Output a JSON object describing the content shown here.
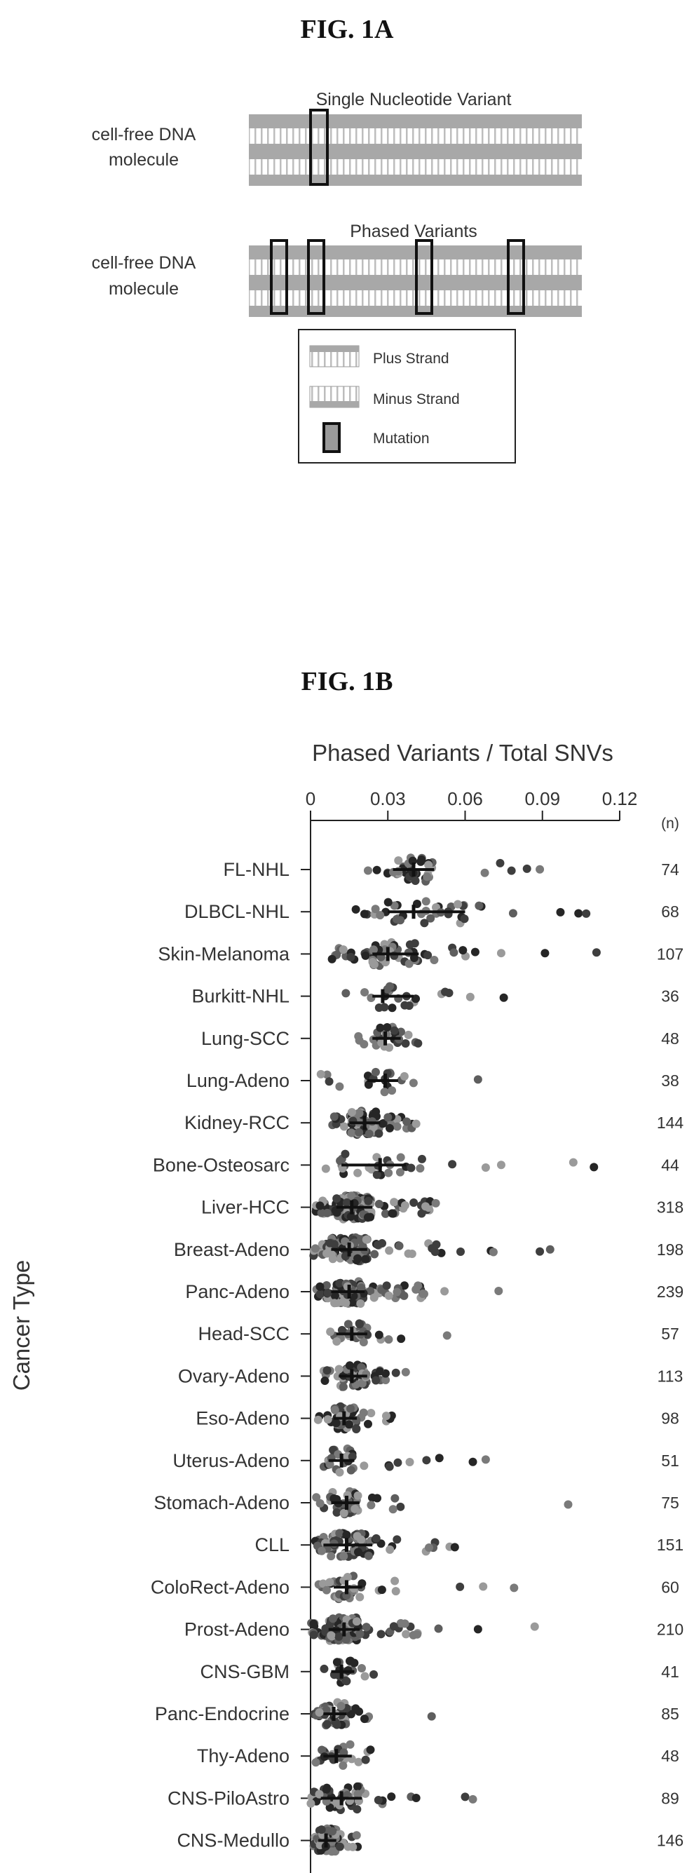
{
  "figure_a": {
    "title": "FIG. 1A",
    "panel1_caption": "Single Nucleotide Variant",
    "panel2_caption": "Phased Variants",
    "molecule_label_line1": "cell-free DNA",
    "molecule_label_line2": "molecule",
    "legend": {
      "plus": "Plus Strand",
      "minus": "Minus Strand",
      "mutation": "Mutation"
    }
  },
  "figure_b": {
    "title": "FIG. 1B"
  },
  "chart_data": {
    "type": "scatter",
    "title": "Phased Variants / Total SNVs",
    "xlabel": "Phased Variants / Total SNVs",
    "ylabel": "Cancer Type",
    "xlim": [
      0,
      0.12
    ],
    "xticks": [
      "0",
      "0.03",
      "0.06",
      "0.09",
      "0.12"
    ],
    "n_header": "(n)",
    "categories": [
      "FL-NHL",
      "DLBCL-NHL",
      "Skin-Melanoma",
      "Burkitt-NHL",
      "Lung-SCC",
      "Lung-Adeno",
      "Kidney-RCC",
      "Bone-Osteosarc",
      "Liver-HCC",
      "Breast-Adeno",
      "Panc-Adeno",
      "Head-SCC",
      "Ovary-Adeno",
      "Eso-Adeno",
      "Uterus-Adeno",
      "Stomach-Adeno",
      "CLL",
      "ColoRect-Adeno",
      "Prost-Adeno",
      "CNS-GBM",
      "Panc-Endocrine",
      "Thy-Adeno",
      "CNS-PiloAstro",
      "CNS-Medullo"
    ],
    "n": [
      "74",
      "68",
      "107",
      "36",
      "48",
      "38",
      "144",
      "44",
      "318",
      "198",
      "239",
      "57",
      "113",
      "98",
      "51",
      "75",
      "151",
      "60",
      "210",
      "41",
      "85",
      "48",
      "89",
      "146"
    ],
    "series": [
      {
        "median": 0.04,
        "q1": 0.032,
        "q3": 0.048,
        "min": 0.02,
        "max": 0.09,
        "outliers": [
          0.078,
          0.084,
          0.089
        ]
      },
      {
        "median": 0.04,
        "q1": 0.03,
        "q3": 0.06,
        "min": 0.013,
        "max": 0.08,
        "outliers": [
          0.097,
          0.104,
          0.107
        ]
      },
      {
        "median": 0.03,
        "q1": 0.024,
        "q3": 0.042,
        "min": 0.008,
        "max": 0.07,
        "outliers": [
          0.074,
          0.091,
          0.111
        ]
      },
      {
        "median": 0.028,
        "q1": 0.024,
        "q3": 0.04,
        "min": 0.013,
        "max": 0.055,
        "outliers": [
          0.062,
          0.075
        ]
      },
      {
        "median": 0.029,
        "q1": 0.024,
        "q3": 0.035,
        "min": 0.016,
        "max": 0.043,
        "outliers": []
      },
      {
        "median": 0.029,
        "q1": 0.022,
        "q3": 0.034,
        "min": 0.004,
        "max": 0.046,
        "outliers": [
          0.065
        ]
      },
      {
        "median": 0.021,
        "q1": 0.015,
        "q3": 0.027,
        "min": 0.006,
        "max": 0.04,
        "outliers": [
          0.041
        ]
      },
      {
        "median": 0.027,
        "q1": 0.012,
        "q3": 0.037,
        "min": 0.002,
        "max": 0.045,
        "outliers": [
          0.055,
          0.068,
          0.074,
          0.102,
          0.11
        ]
      },
      {
        "median": 0.016,
        "q1": 0.01,
        "q3": 0.024,
        "min": 0.002,
        "max": 0.05,
        "outliers": []
      },
      {
        "median": 0.015,
        "q1": 0.008,
        "q3": 0.022,
        "min": 0.001,
        "max": 0.06,
        "outliers": [
          0.07,
          0.071,
          0.089,
          0.093
        ]
      },
      {
        "median": 0.015,
        "q1": 0.008,
        "q3": 0.021,
        "min": 0.002,
        "max": 0.045,
        "outliers": [
          0.052,
          0.073
        ]
      },
      {
        "median": 0.016,
        "q1": 0.01,
        "q3": 0.022,
        "min": 0.004,
        "max": 0.04,
        "outliers": [
          0.053
        ]
      },
      {
        "median": 0.016,
        "q1": 0.011,
        "q3": 0.022,
        "min": 0.004,
        "max": 0.037,
        "outliers": []
      },
      {
        "median": 0.013,
        "q1": 0.009,
        "q3": 0.018,
        "min": 0.001,
        "max": 0.032,
        "outliers": []
      },
      {
        "median": 0.012,
        "q1": 0.007,
        "q3": 0.017,
        "min": 0.002,
        "max": 0.04,
        "outliers": [
          0.045,
          0.05,
          0.063,
          0.068
        ]
      },
      {
        "median": 0.014,
        "q1": 0.008,
        "q3": 0.019,
        "min": 0.001,
        "max": 0.035,
        "outliers": [
          0.1
        ]
      },
      {
        "median": 0.014,
        "q1": 0.005,
        "q3": 0.024,
        "min": 0.001,
        "max": 0.05,
        "outliers": [
          0.054,
          0.056
        ]
      },
      {
        "median": 0.014,
        "q1": 0.009,
        "q3": 0.02,
        "min": 0.003,
        "max": 0.034,
        "outliers": [
          0.058,
          0.067,
          0.079
        ]
      },
      {
        "median": 0.013,
        "q1": 0.007,
        "q3": 0.019,
        "min": 0.0,
        "max": 0.05,
        "outliers": [
          0.065,
          0.087
        ]
      },
      {
        "median": 0.012,
        "q1": 0.008,
        "q3": 0.017,
        "min": 0.004,
        "max": 0.025,
        "outliers": []
      },
      {
        "median": 0.009,
        "q1": 0.005,
        "q3": 0.014,
        "min": 0.001,
        "max": 0.023,
        "outliers": [
          0.047
        ]
      },
      {
        "median": 0.01,
        "q1": 0.005,
        "q3": 0.016,
        "min": 0.001,
        "max": 0.028,
        "outliers": []
      },
      {
        "median": 0.012,
        "q1": 0.004,
        "q3": 0.02,
        "min": 0.0,
        "max": 0.036,
        "outliers": [
          0.039,
          0.041,
          0.06,
          0.063
        ]
      },
      {
        "median": 0.006,
        "q1": 0.003,
        "q3": 0.01,
        "min": 0.001,
        "max": 0.02,
        "outliers": []
      }
    ],
    "point_colors": [
      "#9a9a9a",
      "#7a7a7a",
      "#5e5e5e",
      "#3e3e3e",
      "#262626"
    ],
    "summary_mark_color": "#111111",
    "grid": false,
    "legend": "none"
  }
}
